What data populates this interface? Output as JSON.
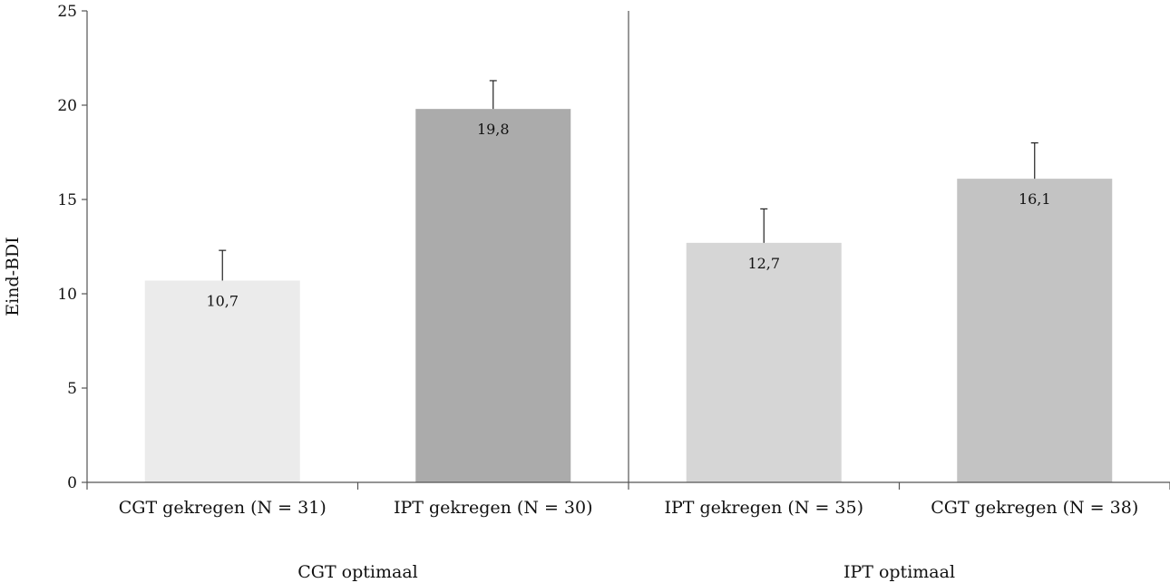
{
  "chart_data": {
    "type": "bar",
    "ylabel": "Eind-BDI",
    "ylim": [
      0,
      25
    ],
    "yticks": [
      0,
      5,
      10,
      15,
      20,
      25
    ],
    "categories": [
      "CGT gekregen (N = 31)",
      "IPT gekregen (N = 30)",
      "IPT gekregen (N = 35)",
      "CGT gekregen (N = 38)"
    ],
    "values": [
      10.7,
      19.8,
      12.7,
      16.1
    ],
    "value_labels": [
      "10,7",
      "19,8",
      "12,7",
      "16,1"
    ],
    "error_upper": [
      1.6,
      1.5,
      1.8,
      1.9
    ],
    "colors": [
      "#ebebeb",
      "#ababab",
      "#d6d6d6",
      "#c3c3c3"
    ],
    "groups": [
      {
        "label": "CGT optimaal",
        "categories": [
          0,
          1
        ]
      },
      {
        "label": "IPT optimaal",
        "categories": [
          2,
          3
        ]
      }
    ],
    "grid": false,
    "legend": "none"
  }
}
